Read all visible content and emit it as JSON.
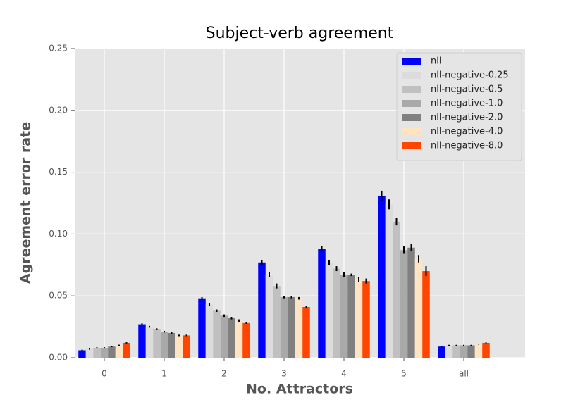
{
  "chart_data": {
    "type": "bar",
    "title": "Subject-verb agreement",
    "x_label": "No. Attractors",
    "y_label": "Agreement error rate",
    "categories": [
      "0",
      "1",
      "2",
      "3",
      "4",
      "5",
      "all"
    ],
    "series": [
      {
        "name": "nll",
        "color": "#0000ff",
        "values": [
          0.006,
          0.027,
          0.048,
          0.077,
          0.088,
          0.131,
          0.009
        ],
        "errors": [
          0.0005,
          0.0008,
          0.001,
          0.002,
          0.002,
          0.004,
          0.0004
        ]
      },
      {
        "name": "nll-negative-0.25",
        "color": "#dcdcdc",
        "values": [
          0.007,
          0.025,
          0.043,
          0.067,
          0.077,
          0.124,
          0.01
        ],
        "errors": [
          0.0005,
          0.0007,
          0.001,
          0.002,
          0.002,
          0.004,
          0.0004
        ]
      },
      {
        "name": "nll-negative-0.5",
        "color": "#c0c0c0",
        "values": [
          0.008,
          0.023,
          0.038,
          0.058,
          0.072,
          0.11,
          0.01
        ],
        "errors": [
          0.0005,
          0.0007,
          0.001,
          0.002,
          0.002,
          0.003,
          0.0004
        ]
      },
      {
        "name": "nll-negative-1.0",
        "color": "#a9a9a9",
        "values": [
          0.008,
          0.021,
          0.034,
          0.049,
          0.067,
          0.087,
          0.01
        ],
        "errors": [
          0.0005,
          0.0007,
          0.001,
          0.001,
          0.002,
          0.003,
          0.0004
        ]
      },
      {
        "name": "nll-negative-2.0",
        "color": "#808080",
        "values": [
          0.009,
          0.02,
          0.032,
          0.049,
          0.067,
          0.089,
          0.01
        ],
        "errors": [
          0.0005,
          0.0007,
          0.001,
          0.001,
          0.001,
          0.003,
          0.0004
        ]
      },
      {
        "name": "nll-negative-4.0",
        "color": "#ffe4c4",
        "values": [
          0.01,
          0.018,
          0.03,
          0.048,
          0.063,
          0.08,
          0.011
        ],
        "errors": [
          0.0005,
          0.0006,
          0.001,
          0.001,
          0.002,
          0.003,
          0.0004
        ]
      },
      {
        "name": "nll-negative-8.0",
        "color": "#ff4500",
        "values": [
          0.012,
          0.018,
          0.028,
          0.041,
          0.062,
          0.07,
          0.012
        ],
        "errors": [
          0.0005,
          0.0006,
          0.0007,
          0.001,
          0.002,
          0.004,
          0.0004
        ]
      }
    ],
    "ylim": [
      0,
      0.25
    ],
    "yticks": [
      {
        "value": 0,
        "label": "0.00"
      },
      {
        "value": 0.05,
        "label": "0.05"
      },
      {
        "value": 0.1,
        "label": "0.10"
      },
      {
        "value": 0.15,
        "label": "0.15"
      },
      {
        "value": 0.2,
        "label": "0.20"
      },
      {
        "value": 0.25,
        "label": "0.25"
      }
    ],
    "grid": true,
    "legend_position": "upper right"
  }
}
